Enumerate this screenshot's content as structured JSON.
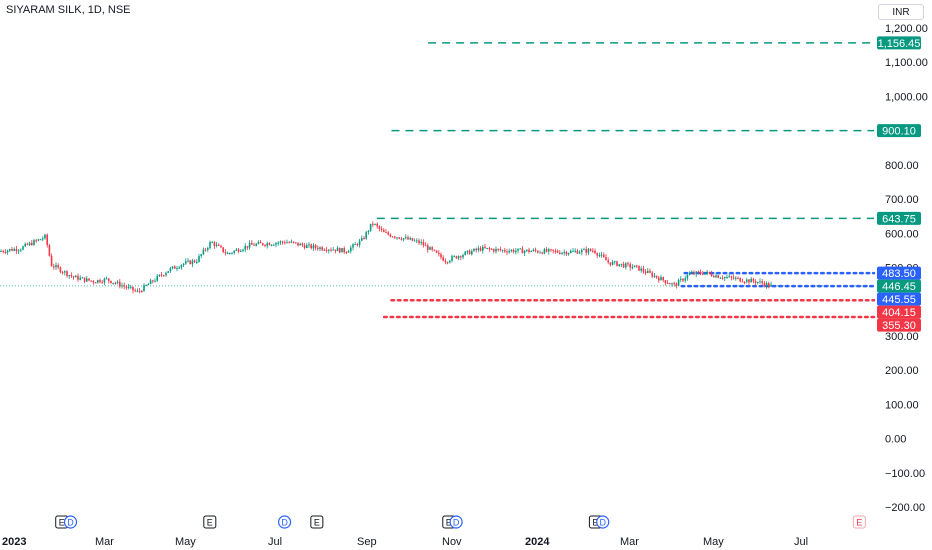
{
  "header": {
    "title": "SIYARAM SILK, 1D, NSE",
    "currency": "INR"
  },
  "chart_data": {
    "type": "candlestick",
    "ylim": [
      -200,
      1200
    ],
    "yticks": [
      "1,200.00",
      "1,100.00",
      "1,000.00",
      "900.00",
      "800.00",
      "700.00",
      "600.00",
      "500.00",
      "300.00",
      "200.00",
      "100.00",
      "0.00",
      "−100.00",
      "−200.00"
    ],
    "ytick_values": [
      1200,
      1100,
      1000,
      900,
      800,
      700,
      600,
      500,
      300,
      200,
      100,
      0,
      -100,
      -200
    ],
    "xticks": [
      {
        "label": "2023",
        "bold": true
      },
      {
        "label": "Mar",
        "bold": false
      },
      {
        "label": "May",
        "bold": false
      },
      {
        "label": "Jul",
        "bold": false
      },
      {
        "label": "Sep",
        "bold": false
      },
      {
        "label": "Nov",
        "bold": false
      },
      {
        "label": "2024",
        "bold": true
      },
      {
        "label": "Mar",
        "bold": false
      },
      {
        "label": "May",
        "bold": false
      },
      {
        "label": "Jul",
        "bold": false
      }
    ],
    "price_path": [
      [
        "2023-01-01",
        548
      ],
      [
        "2023-01-15",
        556
      ],
      [
        "2023-02-01",
        590
      ],
      [
        "2023-02-05",
        508
      ],
      [
        "2023-02-20",
        472
      ],
      [
        "2023-03-05",
        460
      ],
      [
        "2023-03-15",
        465
      ],
      [
        "2023-03-25",
        448
      ],
      [
        "2023-04-05",
        428
      ],
      [
        "2023-04-15",
        460
      ],
      [
        "2023-04-25",
        490
      ],
      [
        "2023-05-05",
        510
      ],
      [
        "2023-05-15",
        520
      ],
      [
        "2023-05-25",
        575
      ],
      [
        "2023-06-05",
        540
      ],
      [
        "2023-06-20",
        565
      ],
      [
        "2023-07-01",
        570
      ],
      [
        "2023-07-15",
        575
      ],
      [
        "2023-08-01",
        560
      ],
      [
        "2023-08-15",
        555
      ],
      [
        "2023-08-25",
        548
      ],
      [
        "2023-09-05",
        580
      ],
      [
        "2023-09-12",
        630
      ],
      [
        "2023-09-20",
        600
      ],
      [
        "2023-10-01",
        588
      ],
      [
        "2023-10-15",
        572
      ],
      [
        "2023-11-01",
        520
      ],
      [
        "2023-11-10",
        535
      ],
      [
        "2023-11-25",
        555
      ],
      [
        "2023-12-10",
        550
      ],
      [
        "2024-01-01",
        548
      ],
      [
        "2024-01-20",
        545
      ],
      [
        "2024-02-10",
        550
      ],
      [
        "2024-02-20",
        515
      ],
      [
        "2024-03-10",
        500
      ],
      [
        "2024-03-25",
        470
      ],
      [
        "2024-04-05",
        448
      ],
      [
        "2024-04-15",
        480
      ],
      [
        "2024-04-25",
        485
      ],
      [
        "2024-05-05",
        475
      ],
      [
        "2024-05-20",
        465
      ],
      [
        "2024-06-01",
        458
      ],
      [
        "2024-06-10",
        446
      ]
    ],
    "levels": [
      {
        "value": 1156.45,
        "label": "1,156.45",
        "color": "#089981",
        "style": "dashed",
        "from": "2023-10-20"
      },
      {
        "value": 900.1,
        "label": "900.10",
        "color": "#089981",
        "style": "dashed",
        "from": "2023-09-25"
      },
      {
        "value": 643.75,
        "label": "643.75",
        "color": "#089981",
        "style": "dashed",
        "from": "2023-09-15"
      },
      {
        "value": 483.5,
        "label": "483.50",
        "color": "#2962ff",
        "style": "dotted",
        "from": "2024-04-12"
      },
      {
        "value": 446.45,
        "label": "446.45",
        "color": "#089981",
        "style": "faint",
        "from": "2023-01-01"
      },
      {
        "value": 445.55,
        "label": "445.55",
        "color": "#2962ff",
        "style": "dotted",
        "from": "2024-04-10"
      },
      {
        "value": 404.15,
        "label": "404.15",
        "color": "#f23645",
        "style": "dotted",
        "from": "2023-09-25"
      },
      {
        "value": 355.3,
        "label": "355.30",
        "color": "#f23645",
        "style": "dotted",
        "from": "2023-09-20"
      }
    ],
    "event_badges": [
      {
        "label": "E",
        "kind": "earnings",
        "date": "2023-02-08"
      },
      {
        "label": "D",
        "kind": "dividend",
        "date": "2023-02-14"
      },
      {
        "label": "E",
        "kind": "earnings",
        "date": "2023-05-20"
      },
      {
        "label": "D",
        "kind": "dividend",
        "date": "2023-07-10"
      },
      {
        "label": "E",
        "kind": "earnings",
        "date": "2023-08-01"
      },
      {
        "label": "E",
        "kind": "earnings",
        "date": "2023-10-30"
      },
      {
        "label": "D",
        "kind": "dividend",
        "date": "2023-11-04"
      },
      {
        "label": "E",
        "kind": "earnings",
        "date": "2024-02-07"
      },
      {
        "label": "D",
        "kind": "dividend",
        "date": "2024-02-12"
      },
      {
        "label": "E",
        "kind": "earnings-upcoming",
        "date": "2024-08-05"
      }
    ],
    "colors": {
      "up": "#089981",
      "down": "#f23645",
      "grid": "#f0f3fa",
      "text": "#131722",
      "dividend": "#2962ff"
    }
  }
}
